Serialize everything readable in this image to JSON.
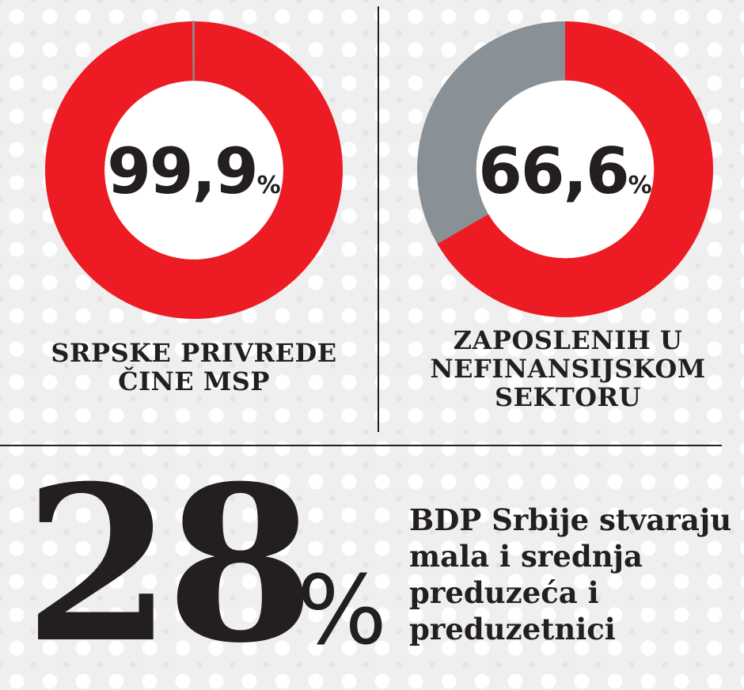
{
  "colors": {
    "accent": "#ed1c24",
    "secondary": "#8a9196",
    "text": "#231f20"
  },
  "chart_data": [
    {
      "type": "pie",
      "variant": "donut",
      "center_label": "99,9",
      "unit": "%",
      "caption_lines": [
        "SRPSKE PRIVREDE",
        "ČINE MSP"
      ],
      "slices": [
        {
          "value": 99.9,
          "color": "#ed1c24"
        },
        {
          "value": 0.1,
          "color": "#8a9196"
        }
      ]
    },
    {
      "type": "pie",
      "variant": "donut",
      "center_label": "66,6",
      "unit": "%",
      "caption_lines": [
        "ZAPOSLENIH U",
        "NEFINANSIJSKOM",
        "SEKTORU"
      ],
      "slices": [
        {
          "value": 66.6,
          "color": "#ed1c24"
        },
        {
          "value": 33.4,
          "color": "#8a9196"
        }
      ]
    }
  ],
  "stat": {
    "value": "28",
    "unit": "%",
    "description_lines": [
      "BDP Srbije stvaraju",
      "mala i srednja",
      "preduzeća i",
      "preduzetnici"
    ]
  }
}
